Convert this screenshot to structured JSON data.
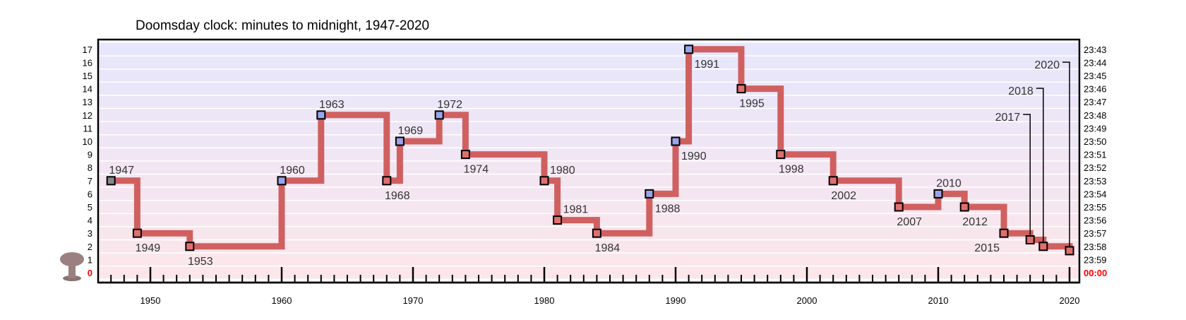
{
  "chart_data": {
    "type": "line",
    "title": "Doomsday clock: minutes to midnight, 1947-2020",
    "xlabel": "",
    "ylabel": "",
    "xlim": [
      1946,
      2021
    ],
    "ylim": [
      0,
      17
    ],
    "x_ticks": [
      1950,
      1960,
      1970,
      1980,
      1990,
      2000,
      2010,
      2020
    ],
    "y_ticks_left": [
      "0",
      "1",
      "2",
      "3",
      "4",
      "5",
      "6",
      "7",
      "8",
      "9",
      "10",
      "11",
      "12",
      "13",
      "14",
      "15",
      "16",
      "17"
    ],
    "y_ticks_right": [
      "00:00",
      "23:59",
      "23:58",
      "23:57",
      "23:56",
      "23:55",
      "23:54",
      "23:53",
      "23:52",
      "23:51",
      "23:50",
      "23:49",
      "23:48",
      "23:47",
      "23:46",
      "23:45",
      "23:44",
      "23:43"
    ],
    "grid": true,
    "step": true,
    "line_color": "#d06060",
    "colors": {
      "line": "#d06060",
      "worse_marker": "#e07070",
      "better_marker": "#9aa4e8",
      "initial_marker": "#888888",
      "midnight_text": "#ff0000",
      "band_top": "#e6e6fc",
      "band_bottom": "#fce6ea"
    },
    "icon": "mushroom-cloud-icon",
    "series": [
      {
        "points": [
          {
            "x": 1947,
            "y": 7,
            "label": "1947",
            "kind": "initial"
          },
          {
            "x": 1949,
            "y": 3,
            "label": "1949",
            "kind": "worse"
          },
          {
            "x": 1953,
            "y": 2,
            "label": "1953",
            "kind": "worse"
          },
          {
            "x": 1960,
            "y": 7,
            "label": "1960",
            "kind": "better"
          },
          {
            "x": 1963,
            "y": 12,
            "label": "1963",
            "kind": "better"
          },
          {
            "x": 1968,
            "y": 7,
            "label": "1968",
            "kind": "worse"
          },
          {
            "x": 1969,
            "y": 10,
            "label": "1969",
            "kind": "better"
          },
          {
            "x": 1972,
            "y": 12,
            "label": "1972",
            "kind": "better"
          },
          {
            "x": 1974,
            "y": 9,
            "label": "1974",
            "kind": "worse"
          },
          {
            "x": 1980,
            "y": 7,
            "label": "1980",
            "kind": "worse"
          },
          {
            "x": 1981,
            "y": 4,
            "label": "1981",
            "kind": "worse"
          },
          {
            "x": 1984,
            "y": 3,
            "label": "1984",
            "kind": "worse"
          },
          {
            "x": 1988,
            "y": 6,
            "label": "1988",
            "kind": "better"
          },
          {
            "x": 1990,
            "y": 10,
            "label": "1990",
            "kind": "better"
          },
          {
            "x": 1991,
            "y": 17,
            "label": "1991",
            "kind": "better"
          },
          {
            "x": 1995,
            "y": 14,
            "label": "1995",
            "kind": "worse"
          },
          {
            "x": 1998,
            "y": 9,
            "label": "1998",
            "kind": "worse"
          },
          {
            "x": 2002,
            "y": 7,
            "label": "2002",
            "kind": "worse"
          },
          {
            "x": 2007,
            "y": 5,
            "label": "2007",
            "kind": "worse"
          },
          {
            "x": 2010,
            "y": 6,
            "label": "2010",
            "kind": "better"
          },
          {
            "x": 2012,
            "y": 5,
            "label": "2012",
            "kind": "worse"
          },
          {
            "x": 2015,
            "y": 3,
            "label": "2015",
            "kind": "worse"
          },
          {
            "x": 2017,
            "y": 2.5,
            "label": "2017",
            "kind": "worse"
          },
          {
            "x": 2018,
            "y": 2,
            "label": "2018",
            "kind": "worse"
          },
          {
            "x": 2020,
            "y": 1.67,
            "label": "2020",
            "kind": "worse"
          }
        ]
      }
    ]
  }
}
